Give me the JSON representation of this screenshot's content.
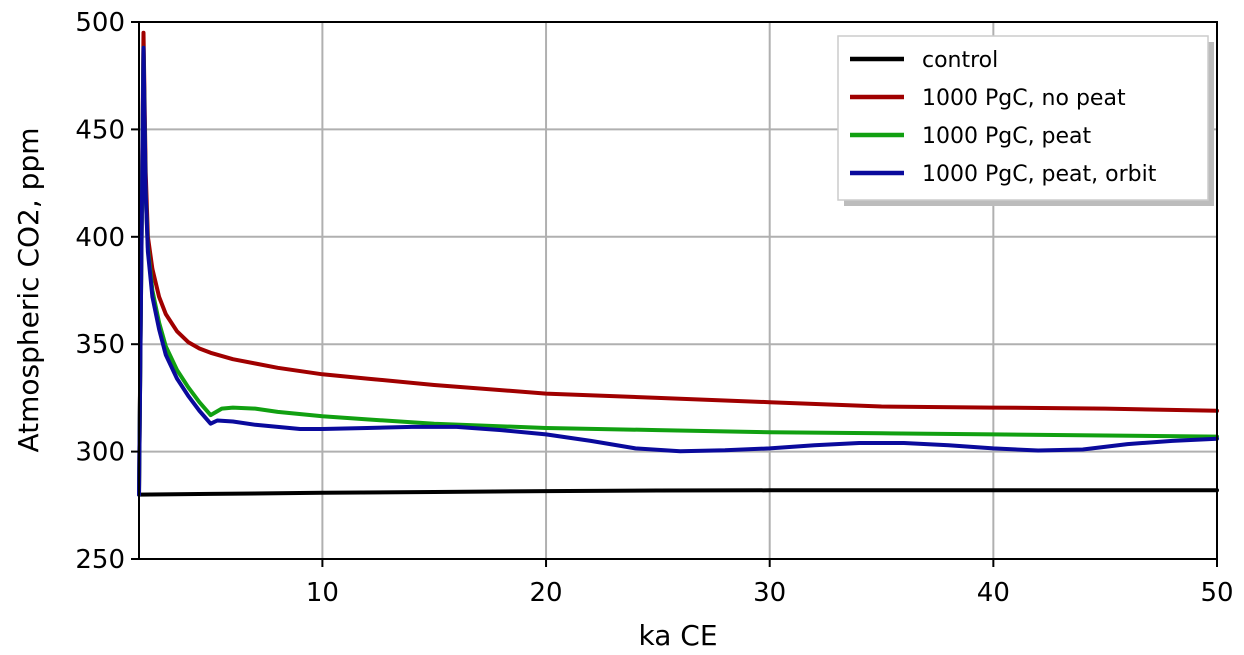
{
  "chart_data": {
    "type": "line",
    "title": "",
    "xlabel": "ka CE",
    "ylabel": "Atmospheric CO2, ppm",
    "xlim": [
      1.8,
      50
    ],
    "ylim": [
      250,
      500
    ],
    "xticks": [
      10,
      20,
      30,
      40,
      50
    ],
    "yticks": [
      250,
      300,
      350,
      400,
      450,
      500
    ],
    "xtick_labels": [
      "10",
      "20",
      "30",
      "40",
      "50"
    ],
    "ytick_labels": [
      "250",
      "300",
      "350",
      "400",
      "450",
      "500"
    ],
    "grid": true,
    "legend_position": "top-right",
    "series": [
      {
        "name": "control",
        "color": "#000000",
        "x": [
          1.8,
          5,
          10,
          15,
          20,
          25,
          30,
          35,
          40,
          45,
          50
        ],
        "y": [
          280,
          280.3,
          280.8,
          281.2,
          281.6,
          281.9,
          282,
          282,
          282,
          282,
          282
        ]
      },
      {
        "name": "1000 PgC, no peat",
        "color": "#a00000",
        "x": [
          1.8,
          2.0,
          2.1,
          2.2,
          2.4,
          2.7,
          3.0,
          3.5,
          4.0,
          4.5,
          5.0,
          6.0,
          7.0,
          8.0,
          10,
          12,
          15,
          20,
          25,
          30,
          35,
          40,
          45,
          50
        ],
        "y": [
          280,
          495,
          430,
          400,
          385,
          372,
          364,
          356,
          351,
          348,
          346,
          343,
          341,
          339,
          336,
          334,
          331,
          327,
          325,
          323,
          321,
          320.5,
          320,
          319
        ]
      },
      {
        "name": "1000 PgC, peat",
        "color": "#11a011",
        "x": [
          1.8,
          2.0,
          2.1,
          2.2,
          2.4,
          2.7,
          3.0,
          3.5,
          4.0,
          4.5,
          5.0,
          5.5,
          6.0,
          7.0,
          8.0,
          10,
          12,
          15,
          20,
          25,
          30,
          35,
          40,
          45,
          50
        ],
        "y": [
          280,
          488,
          420,
          395,
          375,
          360,
          349,
          338,
          330,
          323,
          317,
          320,
          320.5,
          320,
          318.5,
          316.5,
          315,
          313,
          311,
          310,
          309,
          308.5,
          308,
          307.5,
          307
        ]
      },
      {
        "name": "1000 PgC, peat, orbit",
        "color": "#0a0a9c",
        "x": [
          1.8,
          2.0,
          2.1,
          2.2,
          2.4,
          2.7,
          3.0,
          3.5,
          4.0,
          4.5,
          5.0,
          5.3,
          6.0,
          7.0,
          8.0,
          9.0,
          10,
          12,
          14,
          16,
          18,
          20,
          22,
          24,
          26,
          28,
          30,
          32,
          34,
          36,
          38,
          40,
          42,
          44,
          46,
          48,
          50
        ],
        "y": [
          280,
          488,
          420,
          393,
          372,
          357,
          345,
          334,
          326,
          319,
          313,
          314.5,
          314,
          312.5,
          311.5,
          310.5,
          310.5,
          311,
          311.5,
          311.5,
          310,
          308,
          305,
          301.5,
          300.2,
          300.6,
          301.5,
          303,
          304,
          304,
          303,
          301.5,
          300.5,
          301,
          303.5,
          305,
          306
        ]
      }
    ]
  }
}
